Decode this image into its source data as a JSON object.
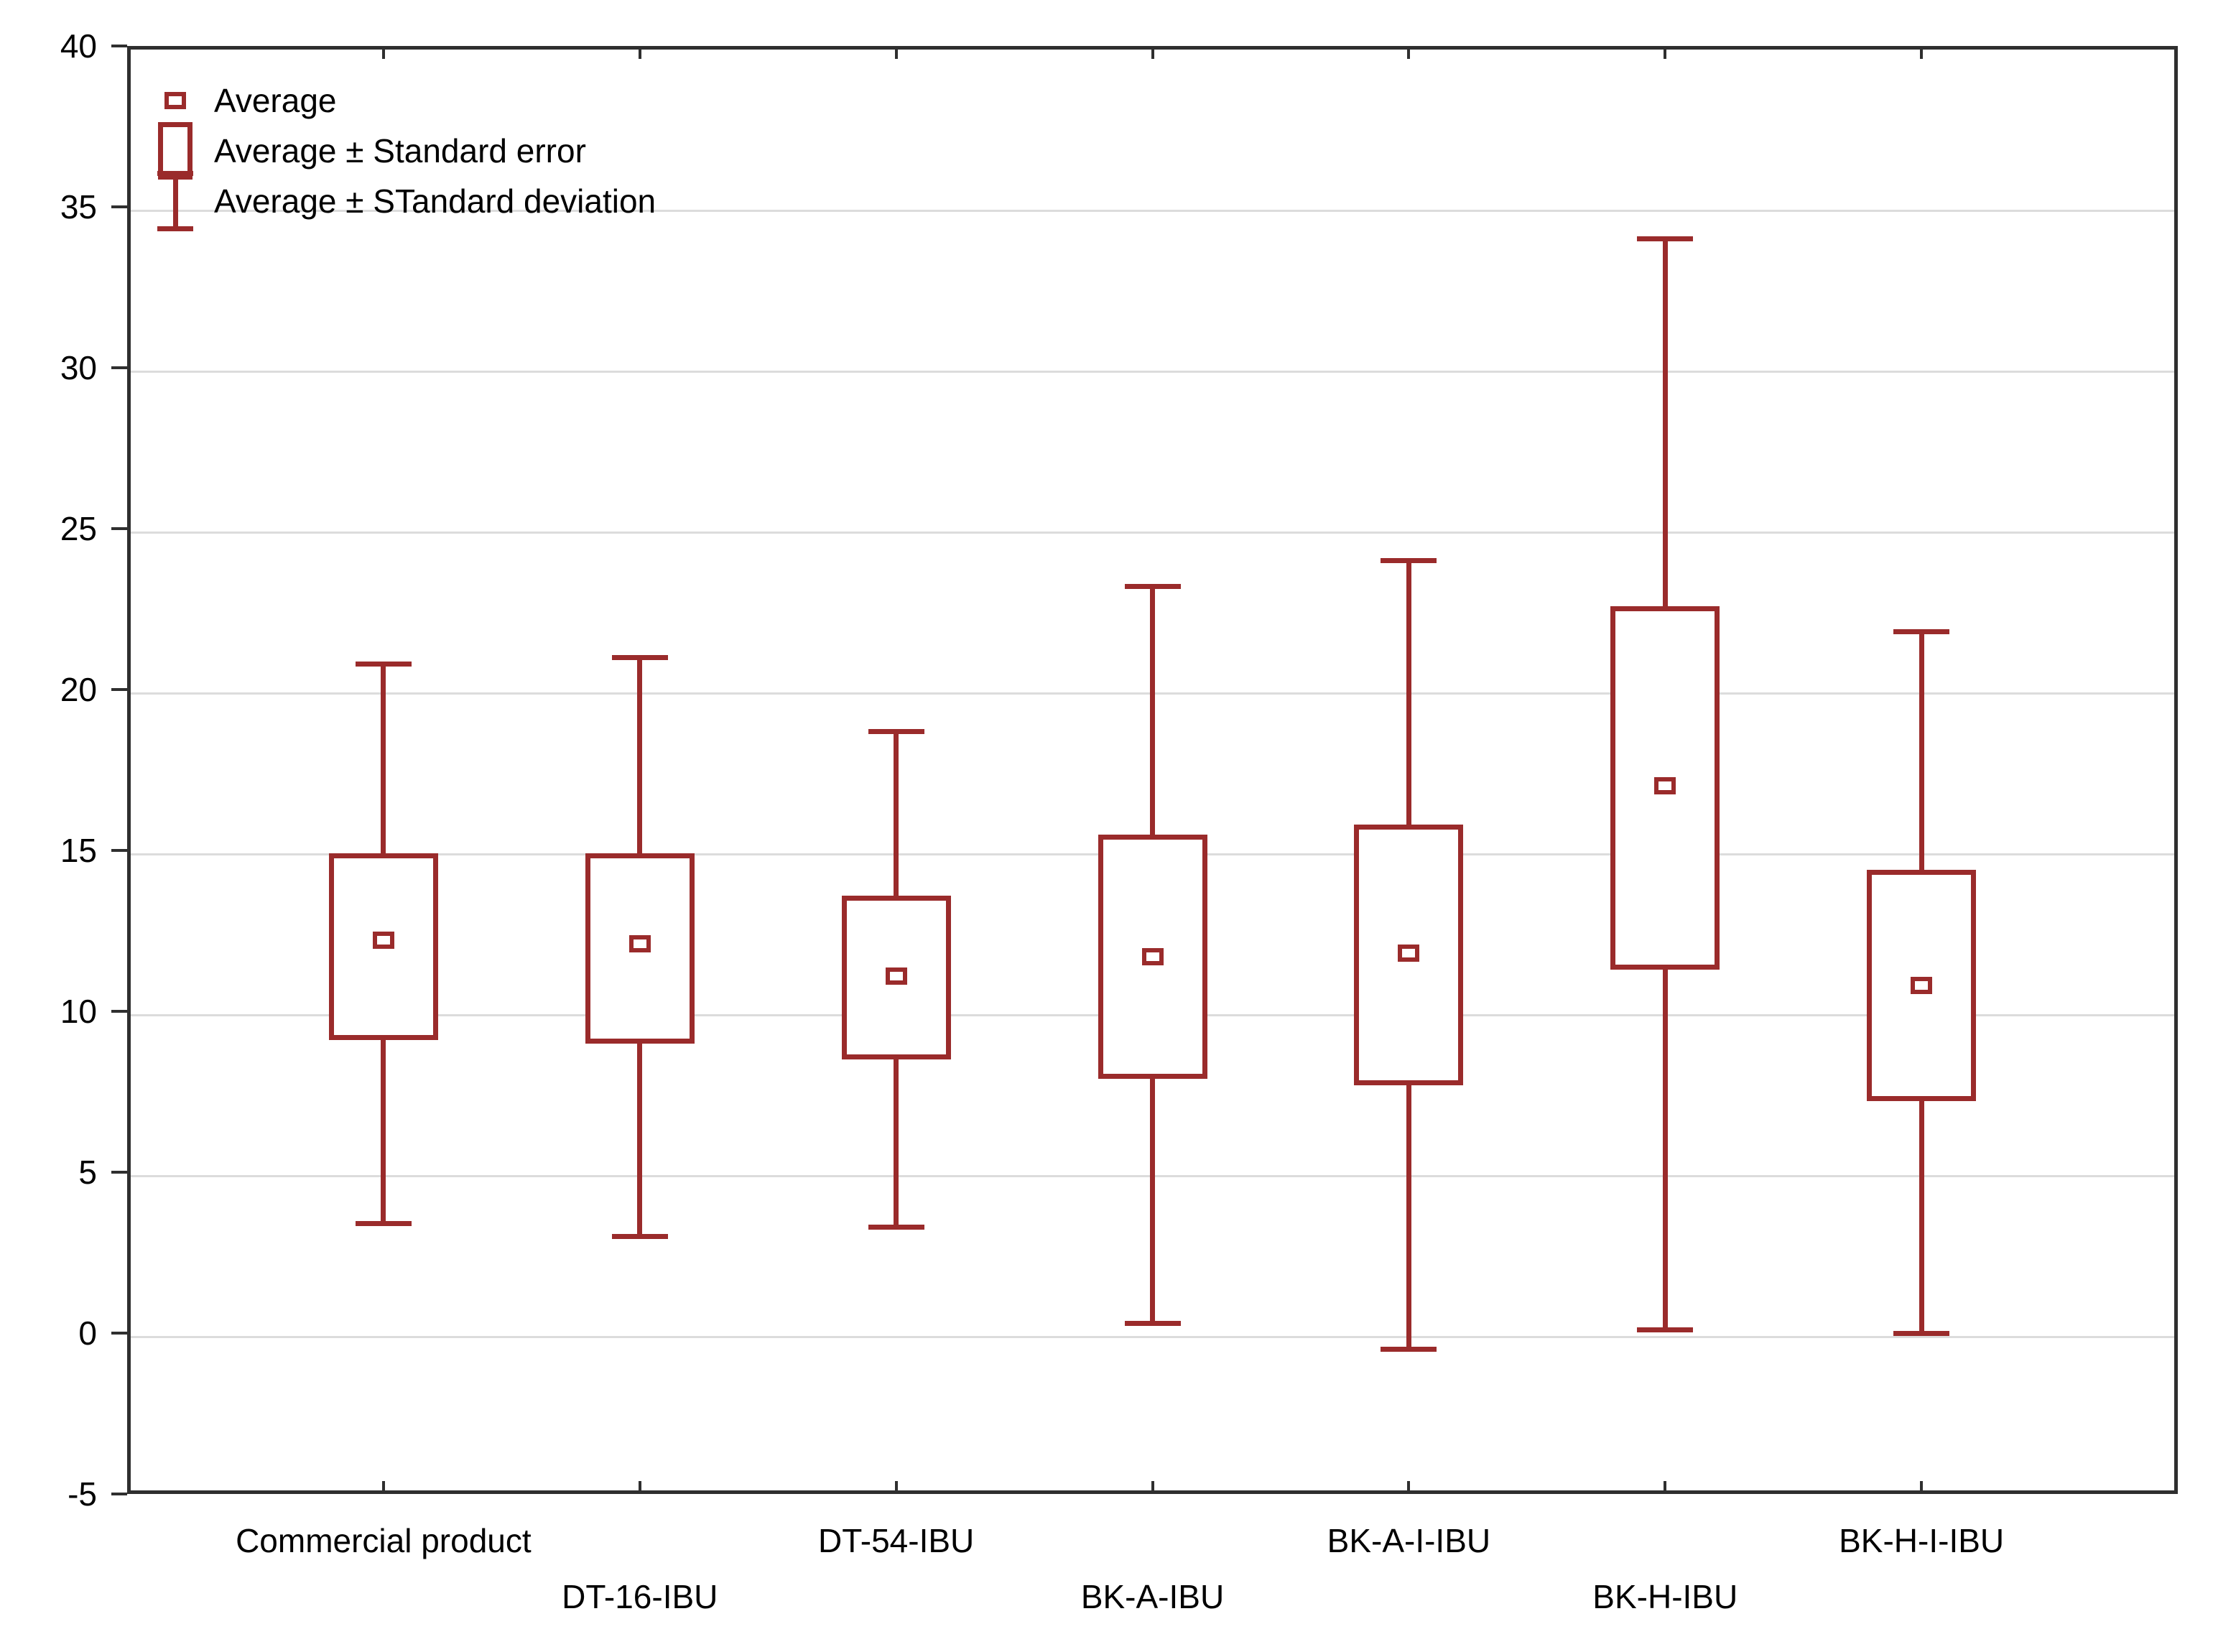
{
  "chart_data": {
    "type": "boxplot",
    "title": "",
    "categories": [
      "Commercial product",
      "DT-16-IBU",
      "DT-54-IBU",
      "BK-A-IBU",
      "BK-A-I-IBU",
      "BK-H-IBU",
      "BK-H-I-IBU"
    ],
    "series": [
      {
        "name": "Commercial product",
        "average": 12.2,
        "se_low": 9.1,
        "se_high": 14.9,
        "sd_low": 3.4,
        "sd_high": 20.8
      },
      {
        "name": "DT-16-IBU",
        "average": 12.1,
        "se_low": 9.0,
        "se_high": 14.9,
        "sd_low": 3.0,
        "sd_high": 21.0
      },
      {
        "name": "DT-54-IBU",
        "average": 11.1,
        "se_low": 8.5,
        "se_high": 13.6,
        "sd_low": 3.3,
        "sd_high": 18.7
      },
      {
        "name": "BK-A-IBU",
        "average": 11.7,
        "se_low": 7.9,
        "se_high": 15.5,
        "sd_low": 0.3,
        "sd_high": 23.2
      },
      {
        "name": "BK-A-I-IBU",
        "average": 11.8,
        "se_low": 7.7,
        "se_high": 15.8,
        "sd_low": -0.5,
        "sd_high": 24.0
      },
      {
        "name": "BK-H-IBU",
        "average": 17.0,
        "se_low": 11.3,
        "se_high": 22.6,
        "sd_low": 0.1,
        "sd_high": 34.0
      },
      {
        "name": "BK-H-I-IBU",
        "average": 10.8,
        "se_low": 7.2,
        "se_high": 14.4,
        "sd_low": 0.0,
        "sd_high": 21.8
      }
    ],
    "xlabel": "",
    "ylabel": "",
    "ylim": [
      -5,
      40
    ],
    "yticks": [
      40,
      35,
      30,
      25,
      20,
      15,
      10,
      5,
      0,
      -5
    ],
    "grid": "horizontal",
    "legend": {
      "position": "top-left",
      "items": [
        {
          "label": "Average",
          "glyph": "square-marker"
        },
        {
          "label": "Average ± Standard error",
          "glyph": "box"
        },
        {
          "label": "Average ± STandard deviation",
          "glyph": "whisker"
        }
      ]
    },
    "colors": {
      "series": "#9a2b2b",
      "grid": "#dcdcdc",
      "axis": "#2f2f2f",
      "text": "#000000",
      "background": "#ffffff"
    }
  }
}
